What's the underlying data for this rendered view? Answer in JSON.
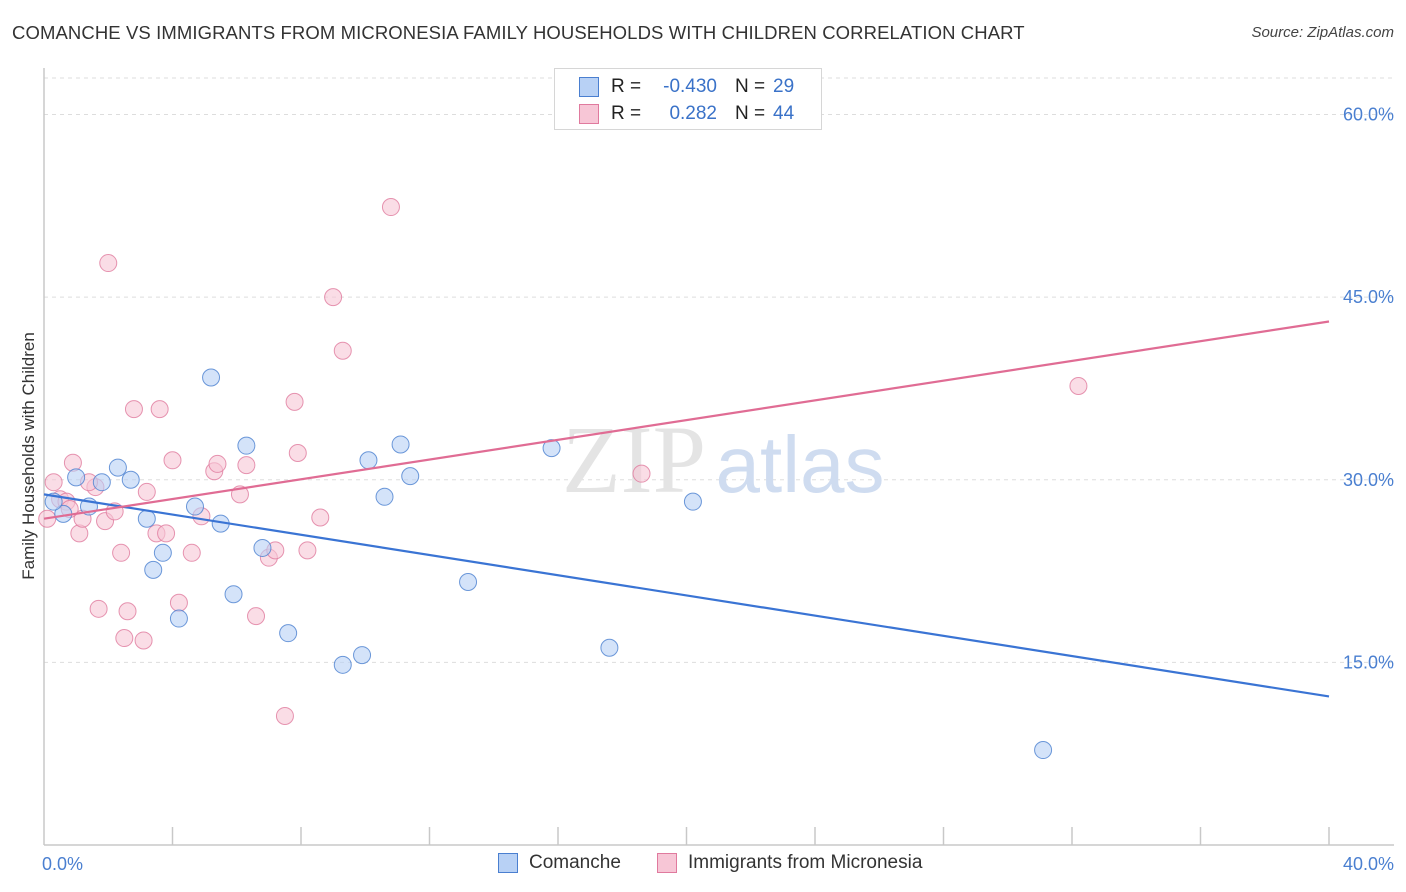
{
  "title": "COMANCHE VS IMMIGRANTS FROM MICRONESIA FAMILY HOUSEHOLDS WITH CHILDREN CORRELATION CHART",
  "source": "Source: ZipAtlas.com",
  "watermark": {
    "zip": "ZIP",
    "atlas": "atlas"
  },
  "colors": {
    "blue": "#4a7fd0",
    "blue_fill": "#b8d1f5",
    "blue_line": "#3a74d4",
    "pink": "#e07a9e",
    "pink_fill": "#f7c6d6",
    "pink_line": "#e06c94",
    "grid": "#dddddd",
    "axis": "#c8c8c8"
  },
  "legend": {
    "rows": [
      {
        "r_label": "R =",
        "r_value": "-0.430",
        "n_label": "N =",
        "n_value": "29",
        "series": "blue"
      },
      {
        "r_label": "R =",
        "r_value": "0.282",
        "n_label": "N =",
        "n_value": "44",
        "series": "pink"
      }
    ],
    "bottom": [
      "Comanche",
      "Immigrants from Micronesia"
    ]
  },
  "chart_data": {
    "type": "scatter",
    "xlabel": "",
    "ylabel": "Family Households with Children",
    "xlim": [
      0,
      40
    ],
    "ylim": [
      0,
      63
    ],
    "x_tick_labels": [
      "0.0%",
      "40.0%"
    ],
    "y_ticks": [
      15,
      30,
      45,
      60
    ],
    "y_tick_labels": [
      "15.0%",
      "30.0%",
      "45.0%",
      "60.0%"
    ],
    "series": [
      {
        "name": "Comanche",
        "color": "blue",
        "trend": {
          "x": [
            0,
            40
          ],
          "y": [
            28.8,
            12.2
          ]
        },
        "points": [
          [
            0.6,
            27.2
          ],
          [
            1.0,
            30.2
          ],
          [
            1.4,
            27.8
          ],
          [
            1.8,
            29.8
          ],
          [
            2.3,
            31.0
          ],
          [
            2.7,
            30.0
          ],
          [
            3.2,
            26.8
          ],
          [
            3.4,
            22.6
          ],
          [
            3.7,
            24.0
          ],
          [
            4.2,
            18.6
          ],
          [
            4.7,
            27.8
          ],
          [
            5.2,
            38.4
          ],
          [
            5.5,
            26.4
          ],
          [
            5.9,
            20.6
          ],
          [
            6.3,
            32.8
          ],
          [
            6.8,
            24.4
          ],
          [
            7.6,
            17.4
          ],
          [
            9.3,
            14.8
          ],
          [
            9.9,
            15.6
          ],
          [
            10.1,
            31.6
          ],
          [
            10.6,
            28.6
          ],
          [
            11.1,
            32.9
          ],
          [
            11.4,
            30.3
          ],
          [
            13.2,
            21.6
          ],
          [
            15.8,
            32.6
          ],
          [
            17.6,
            16.2
          ],
          [
            20.2,
            28.2
          ],
          [
            31.1,
            7.8
          ],
          [
            0.3,
            28.2
          ]
        ]
      },
      {
        "name": "Immigrants from Micronesia",
        "color": "pink",
        "trend": {
          "x": [
            0,
            40
          ],
          "y": [
            26.8,
            43.0
          ]
        },
        "points": [
          [
            0.1,
            26.8
          ],
          [
            0.3,
            29.8
          ],
          [
            0.5,
            28.4
          ],
          [
            0.7,
            28.2
          ],
          [
            0.9,
            31.4
          ],
          [
            1.1,
            25.6
          ],
          [
            1.2,
            26.8
          ],
          [
            1.6,
            29.4
          ],
          [
            1.7,
            19.4
          ],
          [
            1.9,
            26.6
          ],
          [
            2.0,
            47.8
          ],
          [
            2.2,
            27.4
          ],
          [
            2.4,
            24.0
          ],
          [
            2.5,
            17.0
          ],
          [
            2.6,
            19.2
          ],
          [
            2.8,
            35.8
          ],
          [
            3.1,
            16.8
          ],
          [
            3.2,
            29.0
          ],
          [
            3.5,
            25.6
          ],
          [
            3.6,
            35.8
          ],
          [
            3.8,
            25.6
          ],
          [
            4.0,
            31.6
          ],
          [
            4.2,
            19.9
          ],
          [
            4.6,
            24.0
          ],
          [
            4.9,
            27.0
          ],
          [
            5.3,
            30.7
          ],
          [
            5.4,
            31.3
          ],
          [
            6.1,
            28.8
          ],
          [
            6.3,
            31.2
          ],
          [
            6.6,
            18.8
          ],
          [
            7.0,
            23.6
          ],
          [
            7.2,
            24.2
          ],
          [
            7.5,
            10.6
          ],
          [
            7.8,
            36.4
          ],
          [
            7.9,
            32.2
          ],
          [
            8.2,
            24.2
          ],
          [
            8.6,
            26.9
          ],
          [
            9.0,
            45.0
          ],
          [
            9.3,
            40.6
          ],
          [
            10.8,
            52.4
          ],
          [
            18.6,
            30.5
          ],
          [
            32.2,
            37.7
          ],
          [
            1.4,
            29.8
          ],
          [
            0.8,
            27.6
          ]
        ]
      }
    ]
  }
}
